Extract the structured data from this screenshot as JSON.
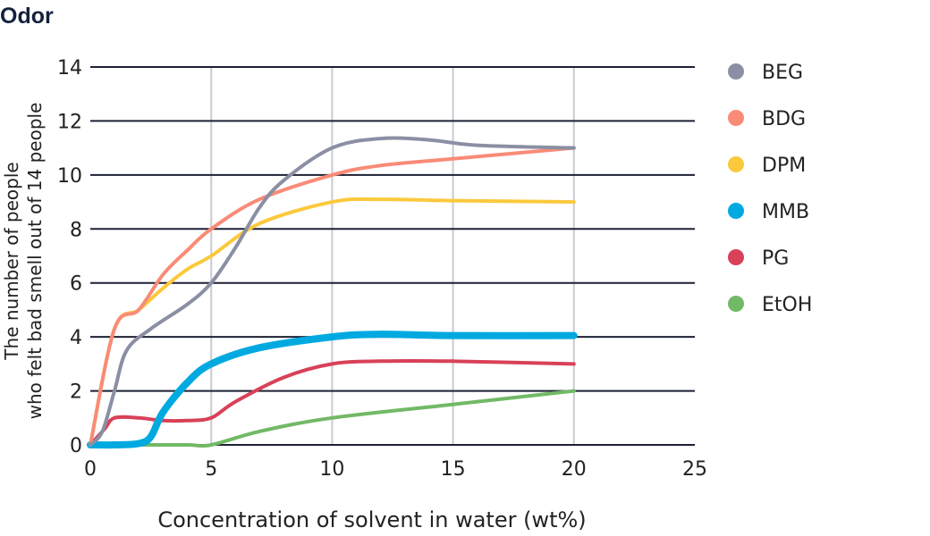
{
  "chart_data": {
    "type": "line",
    "title": "Odor",
    "xlabel": "Concentration of solvent in water (wt%)",
    "ylabel_lines": [
      "The number of people",
      "who felt bad smell out of 14 people"
    ],
    "xlim": [
      0,
      25
    ],
    "ylim": [
      0,
      14
    ],
    "x_ticks": [
      "0",
      "5",
      "10",
      "15",
      "20",
      "25"
    ],
    "y_ticks": [
      "0",
      "2",
      "4",
      "6",
      "8",
      "10",
      "12",
      "14"
    ],
    "x_grid": [
      5,
      10,
      15,
      20
    ],
    "y_grid": [
      2,
      4,
      6,
      8,
      10,
      12,
      14
    ],
    "legend_position": "right",
    "series": [
      {
        "name": "BEG",
        "color": "#8a8fa3",
        "width": 4,
        "points": [
          [
            0,
            0
          ],
          [
            0.5,
            0.5
          ],
          [
            1,
            2
          ],
          [
            1.5,
            3.5
          ],
          [
            2.5,
            4.3
          ],
          [
            4,
            5.2
          ],
          [
            5,
            6
          ],
          [
            6,
            7.3
          ],
          [
            7,
            8.8
          ],
          [
            8,
            9.8
          ],
          [
            10,
            11
          ],
          [
            12,
            11.35
          ],
          [
            14,
            11.3
          ],
          [
            16,
            11.1
          ],
          [
            20,
            11
          ]
        ]
      },
      {
        "name": "BDG",
        "color": "#f98b77",
        "width": 4,
        "points": [
          [
            0,
            0
          ],
          [
            1,
            4.3
          ],
          [
            2,
            5
          ],
          [
            3,
            6.3
          ],
          [
            4,
            7.2
          ],
          [
            5,
            8
          ],
          [
            7,
            9.1
          ],
          [
            10,
            10
          ],
          [
            12,
            10.35
          ],
          [
            15,
            10.6
          ],
          [
            20,
            11
          ]
        ]
      },
      {
        "name": "DPM",
        "color": "#fcc93d",
        "width": 4,
        "points": [
          [
            0,
            0
          ],
          [
            1,
            4.3
          ],
          [
            2,
            5
          ],
          [
            3,
            5.8
          ],
          [
            4,
            6.5
          ],
          [
            5,
            7
          ],
          [
            7,
            8.2
          ],
          [
            10,
            9
          ],
          [
            12,
            9.1
          ],
          [
            15,
            9.05
          ],
          [
            20,
            9
          ]
        ]
      },
      {
        "name": "MMB",
        "color": "#00a9e0",
        "width": 8,
        "points": [
          [
            0,
            0
          ],
          [
            1,
            0
          ],
          [
            2,
            0.05
          ],
          [
            2.5,
            0.3
          ],
          [
            3,
            1.2
          ],
          [
            4,
            2.3
          ],
          [
            5,
            3
          ],
          [
            7,
            3.6
          ],
          [
            10,
            4
          ],
          [
            12,
            4.1
          ],
          [
            15,
            4.05
          ],
          [
            20,
            4.05
          ]
        ]
      },
      {
        "name": "PG",
        "color": "#d84158",
        "width": 4,
        "points": [
          [
            0,
            0
          ],
          [
            0.6,
            0.6
          ],
          [
            1,
            1
          ],
          [
            2,
            1
          ],
          [
            3,
            0.9
          ],
          [
            4,
            0.9
          ],
          [
            5,
            1
          ],
          [
            6,
            1.6
          ],
          [
            8,
            2.5
          ],
          [
            10,
            3
          ],
          [
            12,
            3.1
          ],
          [
            15,
            3.1
          ],
          [
            20,
            3
          ]
        ]
      },
      {
        "name": "EtOH",
        "color": "#72b966",
        "width": 4,
        "points": [
          [
            0,
            0
          ],
          [
            2,
            0
          ],
          [
            4,
            0
          ],
          [
            5,
            0
          ],
          [
            7,
            0.5
          ],
          [
            10,
            1
          ],
          [
            15,
            1.5
          ],
          [
            20,
            2
          ]
        ]
      }
    ]
  }
}
